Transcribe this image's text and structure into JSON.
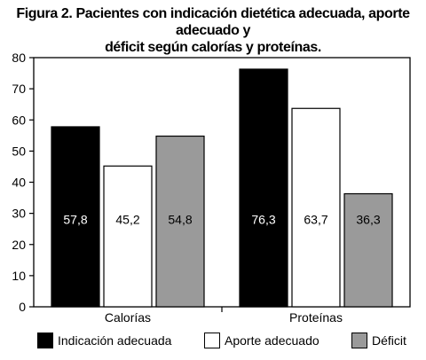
{
  "title": {
    "line1": "Figura 2. Pacientes con indicación dietética adecuada, aporte adecuado y",
    "line2": "déficit según calorías y proteínas."
  },
  "colors": {
    "series0": "#000000",
    "series1": "#ffffff",
    "series2": "#9a9a9a"
  },
  "chart_data": {
    "type": "bar",
    "categories": [
      "Calorías",
      "Proteínas"
    ],
    "series": [
      {
        "name": "Indicación adecuada",
        "values": [
          57.8,
          76.3
        ],
        "labels": [
          "57,8",
          "76,3"
        ]
      },
      {
        "name": "Aporte adecuado",
        "values": [
          45.2,
          63.7
        ],
        "labels": [
          "45,2",
          "63,7"
        ]
      },
      {
        "name": "Déficit",
        "values": [
          54.8,
          36.3
        ],
        "labels": [
          "54,8",
          "36,3"
        ]
      }
    ],
    "ylim": [
      0,
      80
    ],
    "yticks": [
      "0",
      "10",
      "20",
      "30",
      "40",
      "50",
      "60",
      "70",
      "80"
    ],
    "grid": false,
    "legend": "bottom"
  }
}
